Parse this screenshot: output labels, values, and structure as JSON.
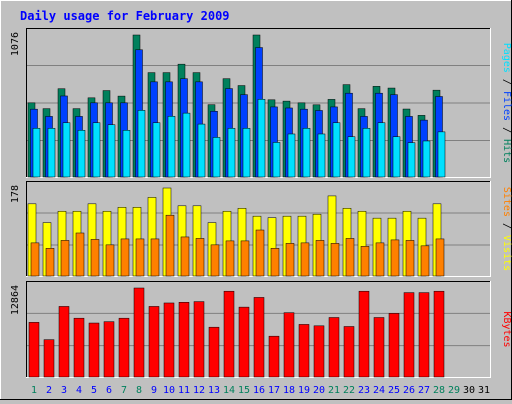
{
  "chart_data": {
    "type": "bar",
    "title": "Daily usage for February 2009",
    "colors": {
      "hits": "#00805c",
      "files": "#0040ff",
      "pages": "#00e0ff",
      "visits": "#ffff00",
      "sites": "#ff8000",
      "kbytes": "#ff0000",
      "title_text": "#0000ff",
      "weekend_label": "#00805c",
      "weekday_label": "#0000ff",
      "nodata_label": "#000000",
      "background": "#c0c0c0",
      "panel": "#c0c0c0"
    },
    "x": [
      "1",
      "2",
      "3",
      "4",
      "5",
      "6",
      "7",
      "8",
      "9",
      "10",
      "11",
      "12",
      "13",
      "14",
      "15",
      "16",
      "17",
      "18",
      "19",
      "20",
      "21",
      "22",
      "23",
      "24",
      "25",
      "26",
      "27",
      "28",
      "29",
      "30",
      "31"
    ],
    "weekend_days": [
      1,
      7,
      8,
      14,
      15,
      21,
      22,
      28,
      29
    ],
    "days_with_data": 28,
    "panels": [
      {
        "id": "hits_files_pages",
        "ymax_label": "1076",
        "ymax": 1076,
        "label_parts": [
          {
            "text": "Pages",
            "color": "#00e0ff"
          },
          {
            "text": " / ",
            "color": "#000000"
          },
          {
            "text": "Files",
            "color": "#0040ff"
          },
          {
            "text": " / ",
            "color": "#000000"
          },
          {
            "text": "Hits",
            "color": "#00805c"
          }
        ],
        "series": [
          {
            "name": "Hits",
            "color": "#00805c",
            "values": [
              562,
              518,
              669,
              518,
              600,
              655,
              613,
              1076,
              791,
              791,
              855,
              791,
              548,
              745,
              693,
              1076,
              585,
              575,
              562,
              547,
              588,
              700,
              518,
              687,
              674,
              515,
              467,
              658
            ]
          },
          {
            "name": "Files",
            "color": "#0040ff",
            "values": [
              514,
              459,
              614,
              459,
              562,
              562,
              562,
              964,
              721,
              721,
              745,
              721,
              498,
              670,
              624,
              981,
              531,
              523,
              514,
              504,
              531,
              635,
              459,
              635,
              624,
              459,
              431,
              610
            ]
          },
          {
            "name": "Pages",
            "color": "#00e0ff",
            "values": [
              369,
              369,
              411,
              354,
              411,
              396,
              354,
              505,
              411,
              460,
              484,
              401,
              300,
              369,
              369,
              589,
              262,
              326,
              369,
              326,
              411,
              305,
              369,
              411,
              305,
              260,
              273,
              342
            ]
          }
        ]
      },
      {
        "id": "visits_sites",
        "ymax_label": "178",
        "ymax": 178,
        "label_parts": [
          {
            "text": "Sites",
            "color": "#ff8000"
          },
          {
            "text": " / ",
            "color": "#000000"
          },
          {
            "text": "Visits",
            "color": "#ffff00"
          }
        ],
        "series": [
          {
            "name": "Visits",
            "color": "#ffff00",
            "values": [
              146,
              108,
              131,
              131,
              146,
              131,
              139,
              139,
              159,
              178,
              142,
              142,
              108,
              131,
              137,
              121,
              118,
              121,
              121,
              125,
              162,
              137,
              131,
              117,
              117,
              131,
              117,
              146
            ]
          },
          {
            "name": "Sites",
            "color": "#ff8000",
            "values": [
              67,
              56,
              72,
              87,
              74,
              63,
              75,
              75,
              75,
              123,
              79,
              76,
              63,
              71,
              71,
              93,
              56,
              66,
              67,
              72,
              66,
              76,
              60,
              67,
              73,
              72,
              61,
              75
            ]
          }
        ]
      },
      {
        "id": "kbytes",
        "ymax_label": "12864",
        "ymax": 12864,
        "label_parts": [
          {
            "text": "KBytes",
            "color": "#ff0000"
          }
        ],
        "series": [
          {
            "name": "KBytes",
            "color": "#ff0000",
            "values": [
              7900,
              5400,
              10200,
              8500,
              7800,
              8000,
              8500,
              12864,
              10200,
              10700,
              10800,
              10900,
              7200,
              12400,
              10100,
              11500,
              5900,
              9300,
              7600,
              7400,
              8600,
              7300,
              12400,
              8600,
              9200,
              12200,
              12200,
              12400
            ]
          }
        ]
      }
    ]
  }
}
